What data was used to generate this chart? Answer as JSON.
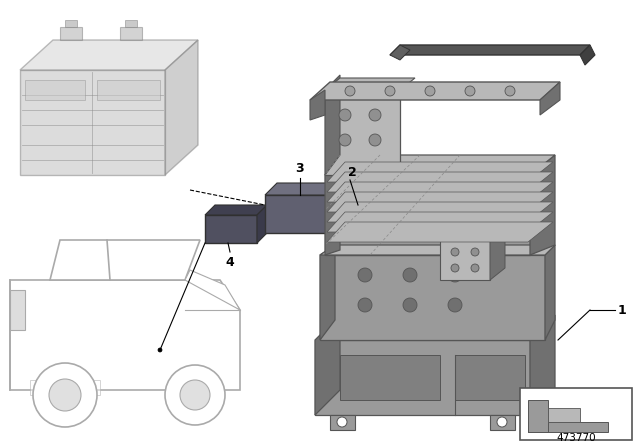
{
  "bg_color": "#ffffff",
  "part_number": "473770",
  "tray_color": "#9a9a9a",
  "tray_light": "#b8b8b8",
  "tray_shadow": "#707070",
  "tray_dark": "#555555",
  "battery_face": "#c0c0c0",
  "battery_top": "#d5d5d5",
  "battery_side": "#a8a8a8",
  "car_color": "#d8d8d8",
  "item4_color": "#505060",
  "item3_color": "#606070",
  "fig_width": 6.4,
  "fig_height": 4.48
}
